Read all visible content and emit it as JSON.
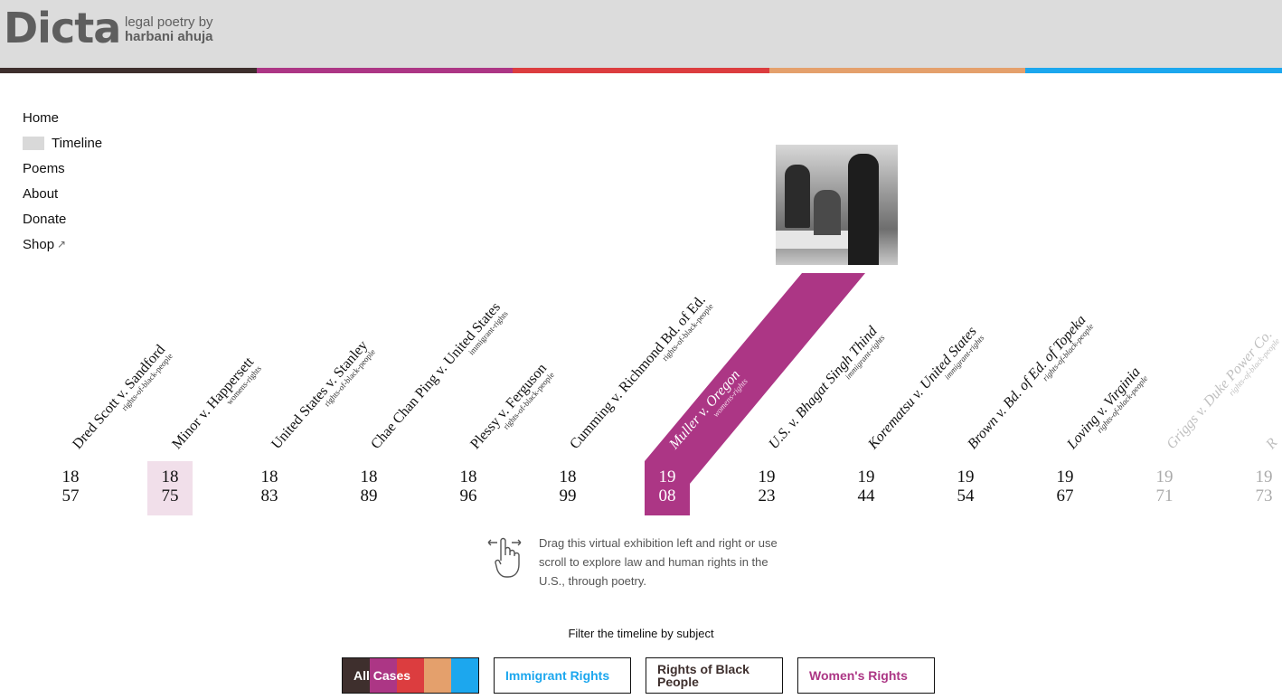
{
  "header": {
    "logo": "Dicta",
    "tagline_1": "legal poetry by",
    "tagline_2": "harbani ahuja"
  },
  "colors": {
    "dark": "#3e2f2d",
    "women": "#ac3685",
    "red": "#dc3d3f",
    "orange": "#e4a06c",
    "immigrant": "#1ca7ee"
  },
  "nav": [
    {
      "label": "Home"
    },
    {
      "label": "Timeline",
      "active": true
    },
    {
      "label": "Poems"
    },
    {
      "label": "About"
    },
    {
      "label": "Donate"
    },
    {
      "label": "Shop",
      "icon": "external-link-icon"
    }
  ],
  "cases": [
    {
      "title": "Dred Scott v. Sandford",
      "subject": "rights-of-black-people",
      "y1": "18",
      "y2": "57"
    },
    {
      "title": "Minor v. Happersett",
      "subject": "womens-rights",
      "y1": "18",
      "y2": "75",
      "state": "hl"
    },
    {
      "title": "United States v. Stanley",
      "subject": "rights-of-black-people",
      "y1": "18",
      "y2": "83"
    },
    {
      "title": "Chae Chan Ping v. United States",
      "subject": "immigrant-rights",
      "y1": "18",
      "y2": "89"
    },
    {
      "title": "Plessy v. Ferguson",
      "subject": "rights-of-black-people",
      "y1": "18",
      "y2": "96"
    },
    {
      "title": "Cumming v. Richmond Bd. of Ed.",
      "subject": "rights-of-black-people",
      "y1": "18",
      "y2": "99"
    },
    {
      "title": "Muller v. Oregon",
      "subject": "womens-rights",
      "y1": "19",
      "y2": "08",
      "state": "active"
    },
    {
      "title": "U.S. v. Bhagat Singh Thind",
      "subject": "immigrant-rights",
      "y1": "19",
      "y2": "23"
    },
    {
      "title": "Korematsu v. United States",
      "subject": "immigrant-rights",
      "y1": "19",
      "y2": "44"
    },
    {
      "title": "Brown v. Bd. of Ed. of Topeka",
      "subject": "rights-of-black-people",
      "y1": "19",
      "y2": "54"
    },
    {
      "title": "Loving v. Virginia",
      "subject": "rights-of-black-people",
      "y1": "19",
      "y2": "67"
    },
    {
      "title": "Griggs v. Duke Power Co.",
      "subject": "rights-of-black-people",
      "y1": "19",
      "y2": "71",
      "state": "faded"
    },
    {
      "title": "R",
      "subject": "",
      "y1": "19",
      "y2": "73",
      "state": "faded"
    }
  ],
  "hint": {
    "icon": "drag-hand-icon",
    "text": "Drag this virtual exhibition left and right or use scroll to explore law and human rights in the U.S., through poetry."
  },
  "filter": {
    "title": "Filter the timeline by subject",
    "buttons": [
      {
        "label": "All Cases",
        "active": true
      },
      {
        "label": "Immigrant Rights",
        "color": "#1ca7ee"
      },
      {
        "label": "Rights of Black People",
        "color": "#3e2f2d"
      },
      {
        "label": "Women's Rights",
        "color": "#ac3685"
      }
    ]
  }
}
